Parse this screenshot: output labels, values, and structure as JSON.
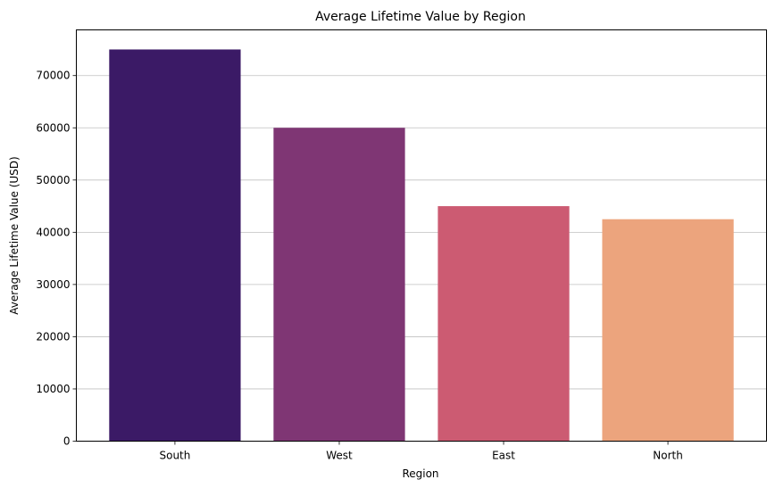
{
  "chart_data": {
    "type": "bar",
    "title": "Average Lifetime Value by Region",
    "xlabel": "Region",
    "ylabel": "Average Lifetime Value (USD)",
    "categories": [
      "South",
      "West",
      "East",
      "North"
    ],
    "values": [
      75000,
      60000,
      45000,
      42500
    ],
    "colors": [
      "#3b1a66",
      "#7f3674",
      "#cc5b72",
      "#eca47d"
    ],
    "ylim": [
      0,
      78750
    ],
    "yticks": [
      0,
      10000,
      20000,
      30000,
      40000,
      50000,
      60000,
      70000
    ],
    "grid": "y",
    "grid_color": "#c0c0c0"
  }
}
